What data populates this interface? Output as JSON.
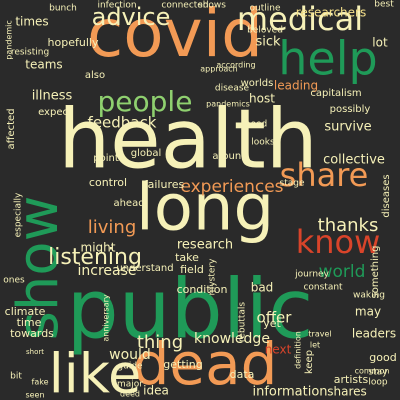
{
  "background": "#2a2a2a",
  "palette": {
    "cream": "#f6f1b8",
    "orange": "#f29a55",
    "green": "#1f9a58",
    "light_green": "#8fd06f",
    "red": "#d9442a",
    "yellow": "#f5e08a",
    "dark_green": "#0f7a3c"
  },
  "words": [
    {
      "text": "covid",
      "color": "orange"
    },
    {
      "text": "health",
      "color": "cream"
    },
    {
      "text": "long",
      "color": "cream"
    },
    {
      "text": "public",
      "color": "green"
    },
    {
      "text": "dead",
      "color": "orange"
    },
    {
      "text": "like",
      "color": "cream"
    },
    {
      "text": "show",
      "color": "green"
    },
    {
      "text": "help",
      "color": "green"
    },
    {
      "text": "medical",
      "color": "cream"
    },
    {
      "text": "people",
      "color": "light_green"
    },
    {
      "text": "advice",
      "color": "cream"
    },
    {
      "text": "share",
      "color": "orange"
    },
    {
      "text": "know",
      "color": "red"
    },
    {
      "text": "thanks",
      "color": "cream"
    },
    {
      "text": "listening",
      "color": "cream"
    },
    {
      "text": "experiences",
      "color": "orange"
    },
    {
      "text": "living",
      "color": "orange"
    },
    {
      "text": "feedback",
      "color": "cream"
    },
    {
      "text": "thing",
      "color": "cream"
    },
    {
      "text": "world",
      "color": "green"
    },
    {
      "text": "would",
      "color": "cream"
    },
    {
      "text": "information",
      "color": "cream"
    },
    {
      "text": "knowledge",
      "color": "cream"
    },
    {
      "text": "offer",
      "color": "cream"
    },
    {
      "text": "research",
      "color": "cream"
    },
    {
      "text": "might",
      "color": "cream"
    },
    {
      "text": "increase",
      "color": "cream"
    },
    {
      "text": "times",
      "color": "cream"
    },
    {
      "text": "teams",
      "color": "cream"
    },
    {
      "text": "sick",
      "color": "cream"
    },
    {
      "text": "lot",
      "color": "cream"
    },
    {
      "text": "collective",
      "color": "cream"
    },
    {
      "text": "survive",
      "color": "cream"
    },
    {
      "text": "researchers",
      "color": "yellow"
    },
    {
      "text": "leading",
      "color": "orange"
    },
    {
      "text": "illness",
      "color": "cream"
    },
    {
      "text": "take",
      "color": "cream"
    },
    {
      "text": "field",
      "color": "cream"
    },
    {
      "text": "bad",
      "color": "cream"
    },
    {
      "text": "yet",
      "color": "cream"
    },
    {
      "text": "may",
      "color": "cream"
    },
    {
      "text": "leaders",
      "color": "cream"
    },
    {
      "text": "getting",
      "color": "cream"
    },
    {
      "text": "data",
      "color": "cream"
    },
    {
      "text": "shares",
      "color": "cream"
    },
    {
      "text": "idea",
      "color": "cream"
    },
    {
      "text": "artists",
      "color": "cream"
    },
    {
      "text": "good",
      "color": "cream"
    },
    {
      "text": "keep",
      "color": "cream"
    },
    {
      "text": "control",
      "color": "cream"
    },
    {
      "text": "failures",
      "color": "cream"
    },
    {
      "text": "condition",
      "color": "cream"
    },
    {
      "text": "understand",
      "color": "cream"
    },
    {
      "text": "climate",
      "color": "cream"
    },
    {
      "text": "time",
      "color": "cream"
    },
    {
      "text": "towards",
      "color": "cream"
    },
    {
      "text": "ones",
      "color": "cream"
    },
    {
      "text": "ahead",
      "color": "cream"
    },
    {
      "text": "host",
      "color": "cream"
    },
    {
      "text": "also",
      "color": "cream"
    },
    {
      "text": "pandemics",
      "color": "cream"
    },
    {
      "text": "disease",
      "color": "cream"
    },
    {
      "text": "worlds",
      "color": "cream"
    },
    {
      "text": "journey",
      "color": "cream"
    },
    {
      "text": "constant",
      "color": "cream"
    },
    {
      "text": "something",
      "color": "cream"
    },
    {
      "text": "diseases",
      "color": "cream"
    },
    {
      "text": "capitalism",
      "color": "cream"
    },
    {
      "text": "possibly",
      "color": "cream"
    },
    {
      "text": "around",
      "color": "cream"
    },
    {
      "text": "connected",
      "color": "cream"
    },
    {
      "text": "hopefully",
      "color": "cream"
    },
    {
      "text": "outline",
      "color": "cream"
    },
    {
      "text": "beloved",
      "color": "cream"
    },
    {
      "text": "best",
      "color": "cream"
    },
    {
      "text": "expect",
      "color": "cream"
    },
    {
      "text": "point",
      "color": "cream"
    },
    {
      "text": "global",
      "color": "cream"
    },
    {
      "text": "affected",
      "color": "cream"
    },
    {
      "text": "mystery",
      "color": "cream"
    },
    {
      "text": "waking",
      "color": "cream"
    },
    {
      "text": "major",
      "color": "cream"
    },
    {
      "text": "guide",
      "color": "cream"
    },
    {
      "text": "next",
      "color": "red"
    },
    {
      "text": "stage",
      "color": "cream"
    },
    {
      "text": "stay",
      "color": "cream"
    },
    {
      "text": "loop",
      "color": "cream"
    },
    {
      "text": "bit",
      "color": "cream"
    },
    {
      "text": "common",
      "color": "cream"
    },
    {
      "text": "bunch",
      "color": "cream"
    },
    {
      "text": "resisting",
      "color": "cream"
    },
    {
      "text": "shows",
      "color": "cream"
    },
    {
      "text": "infection",
      "color": "cream"
    },
    {
      "text": "need",
      "color": "cream"
    },
    {
      "text": "looks",
      "color": "cream"
    },
    {
      "text": "rebuttals",
      "color": "cream"
    },
    {
      "text": "according",
      "color": "cream"
    },
    {
      "text": "approach",
      "color": "cream"
    },
    {
      "text": "pandemic",
      "color": "cream"
    },
    {
      "text": "especially",
      "color": "cream"
    },
    {
      "text": "anniversary",
      "color": "cream"
    },
    {
      "text": "definition",
      "color": "cream"
    },
    {
      "text": "travel",
      "color": "cream"
    },
    {
      "text": "let",
      "color": "cream"
    },
    {
      "text": "short",
      "color": "cream"
    },
    {
      "text": "fake",
      "color": "cream"
    },
    {
      "text": "seen",
      "color": "cream"
    },
    {
      "text": "deed",
      "color": "cream"
    }
  ]
}
